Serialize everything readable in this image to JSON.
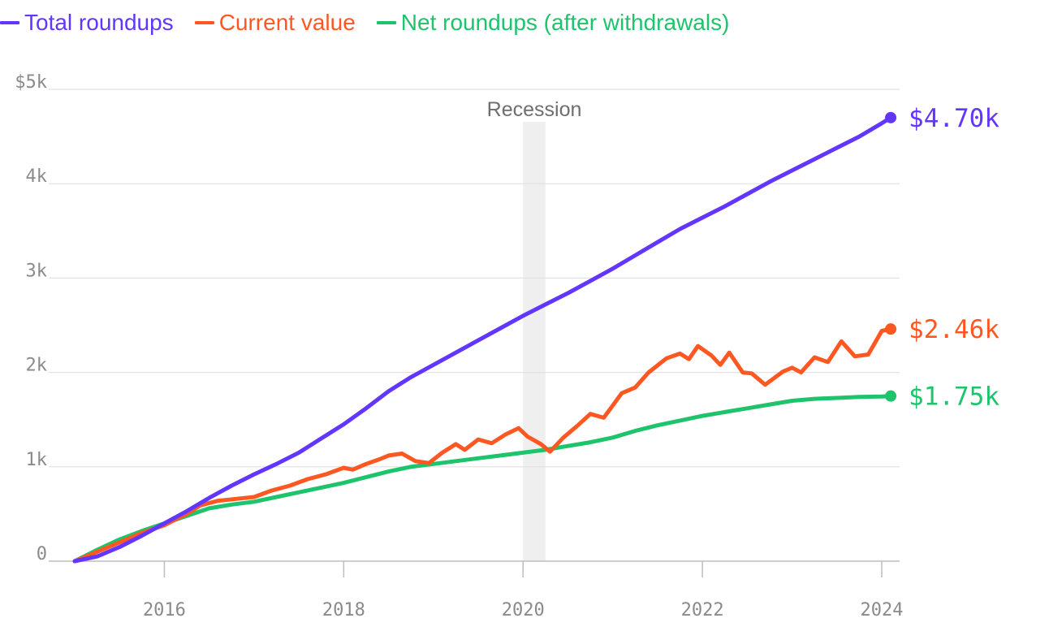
{
  "legend": [
    {
      "label": "Total roundups",
      "color": "#6236ff"
    },
    {
      "label": "Current value",
      "color": "#ff5722"
    },
    {
      "label": "Net roundups (after withdrawals)",
      "color": "#1dc46c"
    }
  ],
  "chart_data": {
    "type": "line",
    "title": "",
    "xlabel": "",
    "ylabel": "",
    "xlim": [
      2014.5,
      2024.2
    ],
    "ylim": [
      0,
      5000
    ],
    "grid": true,
    "legend_position": "top-left",
    "y_ticks": [
      {
        "value": 0,
        "label": "0"
      },
      {
        "value": 1000,
        "label": "1k"
      },
      {
        "value": 2000,
        "label": "2k"
      },
      {
        "value": 3000,
        "label": "3k"
      },
      {
        "value": 4000,
        "label": "4k"
      },
      {
        "value": 5000,
        "label": "$5k"
      }
    ],
    "x_ticks": [
      {
        "value": 2016,
        "label": "2016"
      },
      {
        "value": 2018,
        "label": "2018"
      },
      {
        "value": 2020,
        "label": "2020"
      },
      {
        "value": 2022,
        "label": "2022"
      },
      {
        "value": 2024,
        "label": "2024"
      }
    ],
    "bands": [
      {
        "label": "Recession",
        "x_start": 2020.0,
        "x_end": 2020.25
      }
    ],
    "series": [
      {
        "name": "Total roundups",
        "color": "#6236ff",
        "end_label": "$4.70k",
        "x": [
          2015.0,
          2015.25,
          2015.5,
          2015.75,
          2016.0,
          2016.25,
          2016.5,
          2016.75,
          2017.0,
          2017.25,
          2017.5,
          2017.75,
          2018.0,
          2018.25,
          2018.5,
          2018.75,
          2019.0,
          2019.25,
          2019.5,
          2019.75,
          2020.0,
          2020.25,
          2020.5,
          2020.75,
          2021.0,
          2021.25,
          2021.5,
          2021.75,
          2022.0,
          2022.25,
          2022.5,
          2022.75,
          2023.0,
          2023.25,
          2023.5,
          2023.75,
          2024.0,
          2024.1
        ],
        "values": [
          0,
          50,
          150,
          270,
          400,
          530,
          670,
          800,
          920,
          1030,
          1150,
          1300,
          1450,
          1620,
          1800,
          1950,
          2080,
          2210,
          2340,
          2470,
          2600,
          2720,
          2840,
          2970,
          3100,
          3240,
          3380,
          3520,
          3640,
          3760,
          3890,
          4020,
          4140,
          4260,
          4380,
          4500,
          4640,
          4700
        ]
      },
      {
        "name": "Current value",
        "color": "#ff5722",
        "end_label": "$2.46k",
        "x": [
          2015.0,
          2015.25,
          2015.5,
          2015.75,
          2016.0,
          2016.1,
          2016.25,
          2016.4,
          2016.6,
          2016.8,
          2017.0,
          2017.2,
          2017.4,
          2017.6,
          2017.8,
          2018.0,
          2018.1,
          2018.25,
          2018.4,
          2018.5,
          2018.65,
          2018.8,
          2018.95,
          2019.1,
          2019.25,
          2019.35,
          2019.5,
          2019.65,
          2019.8,
          2019.95,
          2020.05,
          2020.2,
          2020.3,
          2020.45,
          2020.6,
          2020.75,
          2020.9,
          2021.0,
          2021.1,
          2021.25,
          2021.4,
          2021.6,
          2021.75,
          2021.85,
          2021.95,
          2022.1,
          2022.2,
          2022.3,
          2022.45,
          2022.55,
          2022.7,
          2022.9,
          2023.0,
          2023.1,
          2023.25,
          2023.4,
          2023.55,
          2023.7,
          2023.85,
          2024.0,
          2024.1
        ],
        "values": [
          0,
          100,
          200,
          300,
          380,
          430,
          500,
          590,
          640,
          660,
          680,
          750,
          800,
          870,
          920,
          990,
          970,
          1030,
          1080,
          1120,
          1140,
          1060,
          1040,
          1150,
          1240,
          1180,
          1290,
          1250,
          1340,
          1410,
          1320,
          1240,
          1160,
          1310,
          1430,
          1560,
          1520,
          1650,
          1780,
          1840,
          2000,
          2150,
          2200,
          2140,
          2280,
          2180,
          2080,
          2210,
          2000,
          1990,
          1870,
          2010,
          2050,
          2000,
          2160,
          2110,
          2330,
          2170,
          2190,
          2440,
          2460
        ]
      },
      {
        "name": "Net roundups (after withdrawals)",
        "color": "#1dc46c",
        "end_label": "$1.75k",
        "x": [
          2015.0,
          2015.25,
          2015.5,
          2015.75,
          2016.0,
          2016.25,
          2016.5,
          2016.75,
          2017.0,
          2017.25,
          2017.5,
          2017.75,
          2018.0,
          2018.25,
          2018.5,
          2018.75,
          2019.0,
          2019.25,
          2019.5,
          2019.75,
          2020.0,
          2020.25,
          2020.5,
          2020.75,
          2021.0,
          2021.25,
          2021.5,
          2021.75,
          2022.0,
          2022.25,
          2022.5,
          2022.75,
          2023.0,
          2023.25,
          2023.5,
          2023.75,
          2024.0,
          2024.1
        ],
        "values": [
          0,
          120,
          230,
          320,
          400,
          480,
          560,
          600,
          630,
          680,
          730,
          780,
          830,
          890,
          950,
          1000,
          1030,
          1060,
          1090,
          1120,
          1150,
          1180,
          1220,
          1260,
          1310,
          1380,
          1440,
          1490,
          1540,
          1580,
          1620,
          1660,
          1700,
          1720,
          1730,
          1740,
          1745,
          1750
        ]
      }
    ]
  }
}
